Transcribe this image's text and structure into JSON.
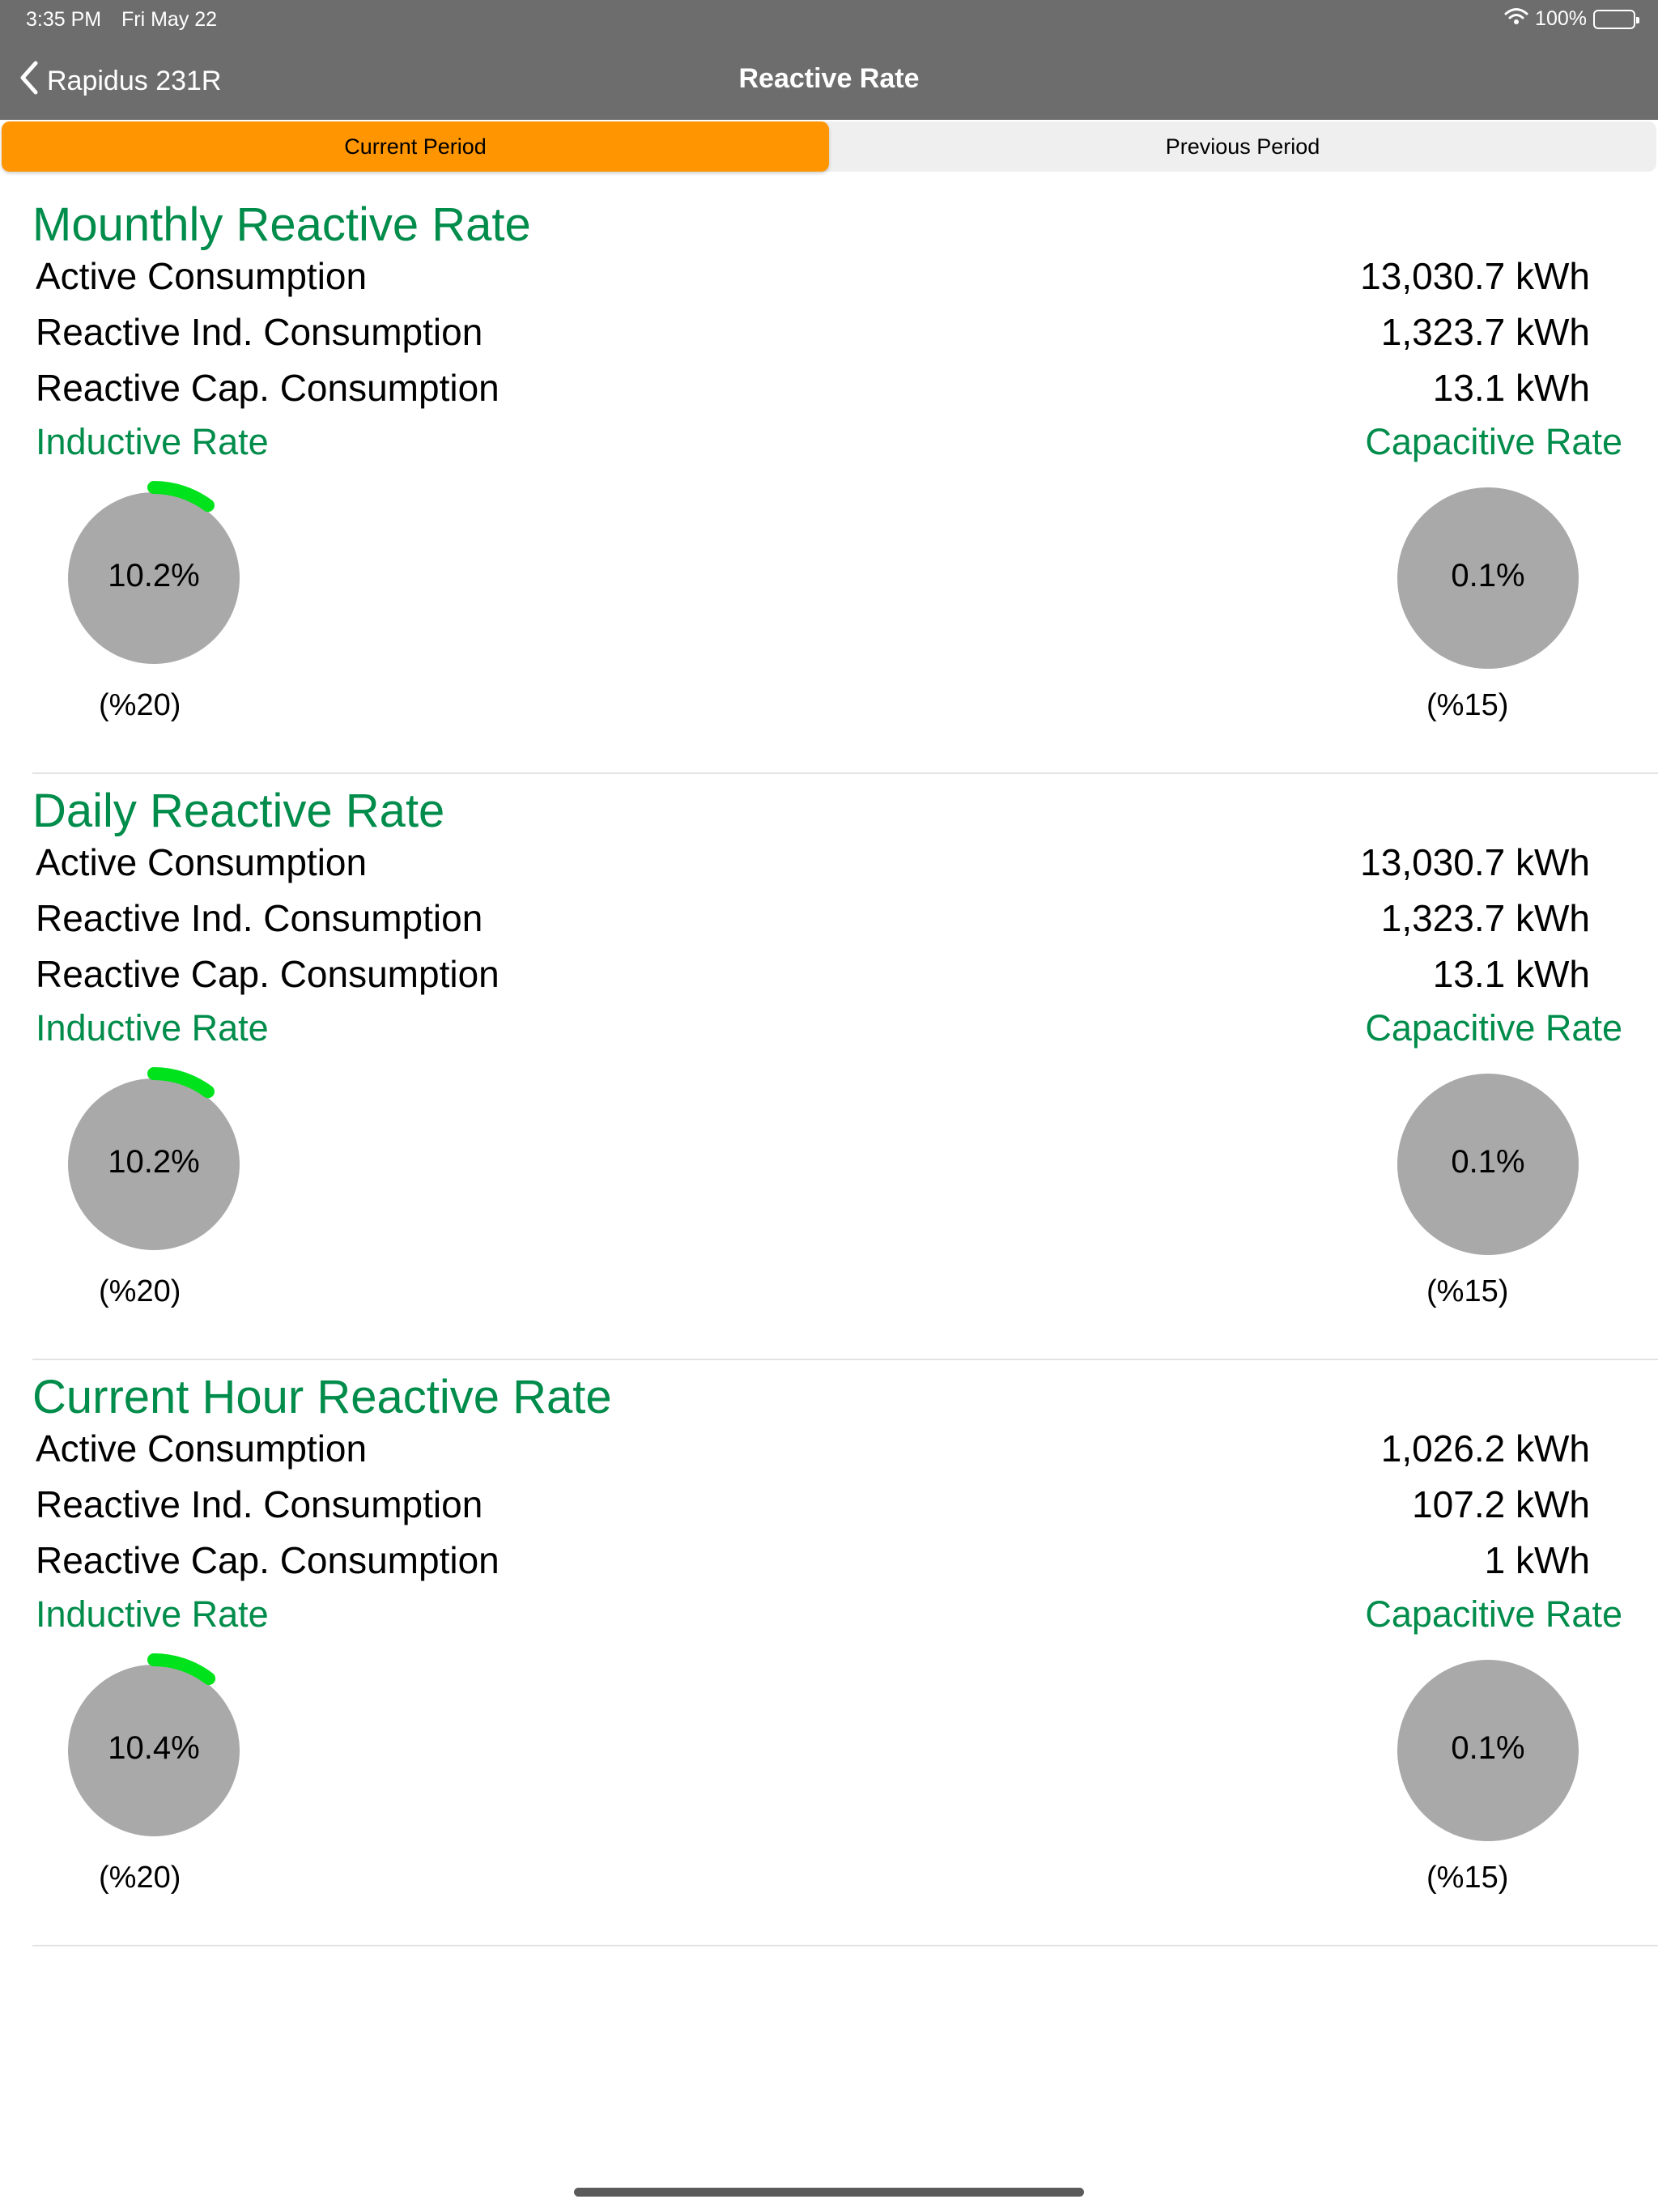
{
  "status": {
    "time": "3:35 PM",
    "date": "Fri May 22",
    "battery": "100%"
  },
  "nav": {
    "back_label": "Rapidus 231R",
    "title": "Reactive Rate"
  },
  "segments": {
    "current": "Current Period",
    "previous": "Previous Period",
    "selected": "current"
  },
  "colors": {
    "accent": "#ff9500",
    "green": "#008c4a",
    "arc": "#00e21c",
    "dial": "#a9a9a9"
  },
  "sections": [
    {
      "title": "Mounthly Reactive Rate",
      "rows": [
        {
          "label": "Active Consumption",
          "value": "13,030.7 kWh"
        },
        {
          "label": "Reactive Ind. Consumption",
          "value": "1,323.7 kWh"
        },
        {
          "label": "Reactive Cap. Consumption",
          "value": "13.1 kWh"
        }
      ],
      "inductive": {
        "label": "Inductive Rate",
        "value": "10.2%",
        "fraction": 0.102,
        "limit": "(%20)"
      },
      "capacitive": {
        "label": "Capacitive Rate",
        "value": "0.1%",
        "fraction": 0.001,
        "limit": "(%15)"
      }
    },
    {
      "title": "Daily Reactive Rate",
      "rows": [
        {
          "label": "Active Consumption",
          "value": "13,030.7 kWh"
        },
        {
          "label": "Reactive Ind. Consumption",
          "value": "1,323.7 kWh"
        },
        {
          "label": "Reactive Cap. Consumption",
          "value": "13.1 kWh"
        }
      ],
      "inductive": {
        "label": "Inductive Rate",
        "value": "10.2%",
        "fraction": 0.102,
        "limit": "(%20)"
      },
      "capacitive": {
        "label": "Capacitive Rate",
        "value": "0.1%",
        "fraction": 0.001,
        "limit": "(%15)"
      }
    },
    {
      "title": "Current Hour Reactive Rate",
      "rows": [
        {
          "label": "Active Consumption",
          "value": "1,026.2 kWh"
        },
        {
          "label": "Reactive Ind. Consumption",
          "value": "107.2 kWh"
        },
        {
          "label": "Reactive Cap. Consumption",
          "value": "1 kWh"
        }
      ],
      "inductive": {
        "label": "Inductive Rate",
        "value": "10.4%",
        "fraction": 0.104,
        "limit": "(%20)"
      },
      "capacitive": {
        "label": "Capacitive Rate",
        "value": "0.1%",
        "fraction": 0.001,
        "limit": "(%15)"
      }
    }
  ]
}
